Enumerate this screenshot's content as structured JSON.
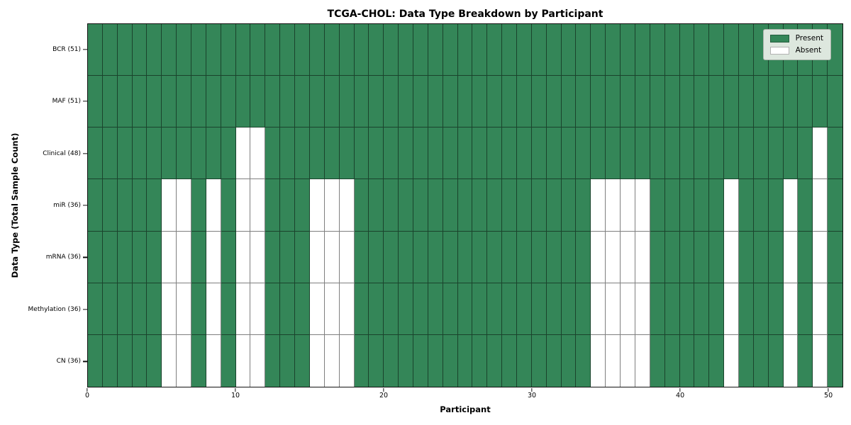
{
  "title": "TCGA-CHOL: Data Type Breakdown by Participant",
  "axes": {
    "xlabel": "Participant",
    "ylabel": "Data Type (Total Sample Count)"
  },
  "legend": {
    "present_label": "Present",
    "absent_label": "Absent"
  },
  "colors": {
    "present": "#348658",
    "absent": "#ffffff",
    "legend_bg": "#dde7de",
    "spine": "#111111"
  },
  "chart_data": {
    "type": "heatmap",
    "title": "TCGA-CHOL: Data Type Breakdown by Participant",
    "xlabel": "Participant",
    "ylabel": "Data Type (Total Sample Count)",
    "legend_entries": [
      "Present",
      "Absent"
    ],
    "legend_position": "upper right",
    "x_range": [
      0,
      51
    ],
    "x_ticks": [
      0,
      10,
      20,
      30,
      40,
      50
    ],
    "n_participants": 51,
    "value_encoding": {
      "present": 1,
      "absent": 0
    },
    "rows": [
      {
        "label": "BCR (51)",
        "data_type": "BCR",
        "total_samples": 51,
        "absent_participants": []
      },
      {
        "label": "MAF (51)",
        "data_type": "MAF",
        "total_samples": 51,
        "absent_participants": []
      },
      {
        "label": "Clinical (48)",
        "data_type": "Clinical",
        "total_samples": 48,
        "absent_participants": [
          10,
          11,
          49
        ]
      },
      {
        "label": "miR (36)",
        "data_type": "miR",
        "total_samples": 36,
        "absent_participants": [
          5,
          6,
          8,
          10,
          11,
          15,
          16,
          17,
          34,
          35,
          36,
          37,
          43,
          47,
          49
        ]
      },
      {
        "label": "mRNA (36)",
        "data_type": "mRNA",
        "total_samples": 36,
        "absent_participants": [
          5,
          6,
          8,
          10,
          11,
          15,
          16,
          17,
          34,
          35,
          36,
          37,
          43,
          47,
          49
        ]
      },
      {
        "label": "Methylation (36)",
        "data_type": "Methylation",
        "total_samples": 36,
        "absent_participants": [
          5,
          6,
          8,
          10,
          11,
          15,
          16,
          17,
          34,
          35,
          36,
          37,
          43,
          47,
          49
        ]
      },
      {
        "label": "CN (36)",
        "data_type": "CN",
        "total_samples": 36,
        "absent_participants": [
          5,
          6,
          8,
          10,
          11,
          15,
          16,
          17,
          34,
          35,
          36,
          37,
          43,
          47,
          49
        ]
      }
    ]
  }
}
